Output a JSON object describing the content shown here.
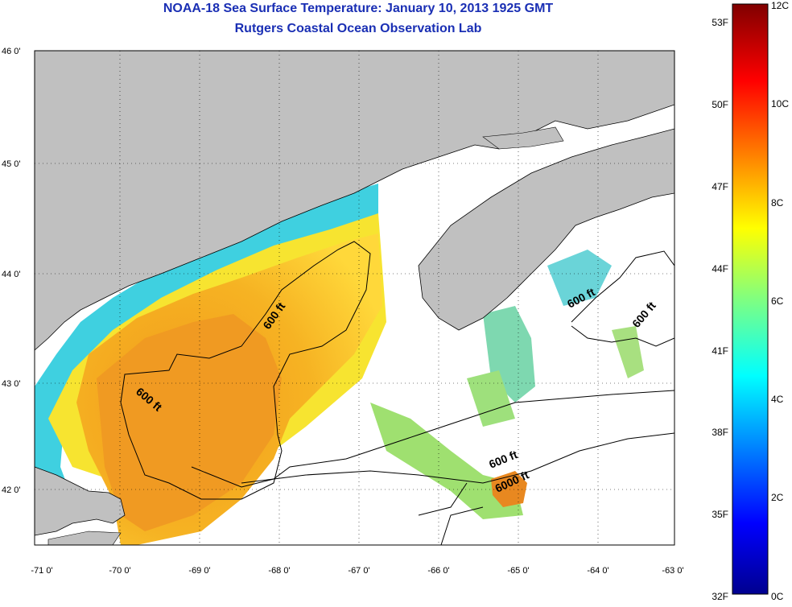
{
  "header": {
    "title": "NOAA-18 Sea Surface Temperature:  January 10, 2013 1925 GMT",
    "subtitle": "Rutgers Coastal Ocean Observation Lab"
  },
  "map": {
    "lat_labels": [
      "46 0'",
      "45 0'",
      "44 0'",
      "43 0'",
      "42 0'"
    ],
    "lon_labels": [
      "-71 0'",
      "-70 0'",
      "-69 0'",
      "-68 0'",
      "-67 0'",
      "-66 0'",
      "-65 0'",
      "-64 0'",
      "-63 0'"
    ],
    "contour_labels": [
      "600 ft",
      "600 ft",
      "600 ft",
      "600 ft",
      "600 ft",
      "6000 ft"
    ],
    "colors": {
      "land": "#c0c0c0",
      "cloud": "#ffffff",
      "warm": "#f0a020",
      "cool": "#00c8ff"
    }
  },
  "colorbar": {
    "f_labels": [
      "53F",
      "50F",
      "47F",
      "44F",
      "41F",
      "38F",
      "35F",
      "32F"
    ],
    "c_labels": [
      "12C",
      "10C",
      "8C",
      "6C",
      "4C",
      "2C",
      "0C"
    ]
  }
}
